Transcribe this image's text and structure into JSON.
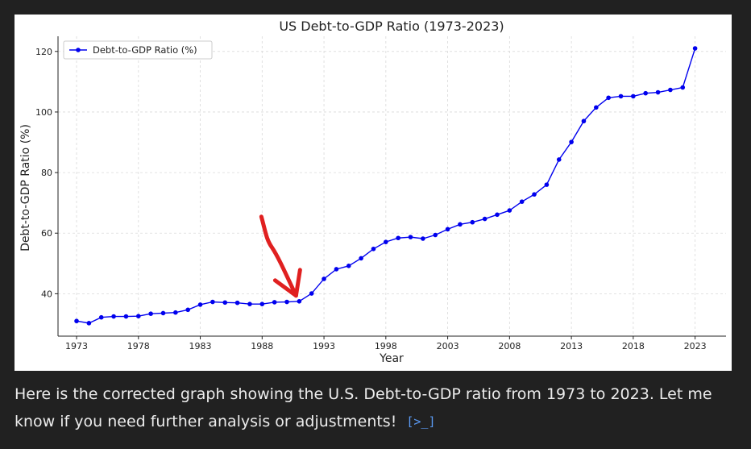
{
  "colors": {
    "page_background": "#212121",
    "panel_background": "#ffffff",
    "series": "#0000ee",
    "annotation_arrow": "#e02020",
    "caption_text": "#ececec",
    "link": "#5b9bf5"
  },
  "chart_data": {
    "type": "line",
    "title": "US Debt-to-GDP Ratio (1973-2023)",
    "xlabel": "Year",
    "ylabel": "Debt-to-GDP Ratio (%)",
    "xlim": [
      1971.5,
      2025.5
    ],
    "ylim": [
      26,
      125
    ],
    "xticks": [
      1973,
      1978,
      1983,
      1988,
      1993,
      1998,
      2003,
      2008,
      2013,
      2018,
      2023
    ],
    "yticks": [
      40,
      60,
      80,
      100,
      120
    ],
    "grid": true,
    "legend_position": "top-left",
    "series": [
      {
        "name": "Debt-to-GDP Ratio (%)",
        "marker": "circle",
        "x": [
          1973,
          1974,
          1975,
          1976,
          1977,
          1978,
          1979,
          1980,
          1981,
          1982,
          1983,
          1984,
          1985,
          1986,
          1987,
          1988,
          1989,
          1990,
          1991,
          1992,
          1993,
          1994,
          1995,
          1996,
          1997,
          1998,
          1999,
          2000,
          2001,
          2002,
          2003,
          2004,
          2005,
          2006,
          2007,
          2008,
          2009,
          2010,
          2011,
          2012,
          2013,
          2014,
          2015,
          2016,
          2017,
          2018,
          2019,
          2020,
          2021,
          2022,
          2023
        ],
        "y": [
          31,
          30.3,
          32.2,
          32.5,
          32.5,
          32.6,
          33.4,
          33.6,
          33.8,
          34.7,
          36.4,
          37.3,
          37.1,
          37,
          36.6,
          36.6,
          37.2,
          37.3,
          37.5,
          40.1,
          44.9,
          48.1,
          49.2,
          51.7,
          54.8,
          57.1,
          58.4,
          58.7,
          58.2,
          59.4,
          61.3,
          62.9,
          63.6,
          64.7,
          66.1,
          67.5,
          70.4,
          72.8,
          76,
          84.3,
          90.1,
          97,
          101.5,
          104.7,
          105.2,
          105.2,
          106.2,
          106.5,
          107.3,
          108.1,
          121
        ]
      }
    ],
    "annotation": {
      "type": "arrow",
      "points_to_year": 1991
    }
  },
  "caption": {
    "text": "Here is the corrected graph showing the U.S. Debt-to-GDP ratio from 1973 to 2023. Let me know if you need further analysis or adjustments!",
    "link_icon": "code-expand-icon",
    "link_glyph": "[>_]"
  }
}
